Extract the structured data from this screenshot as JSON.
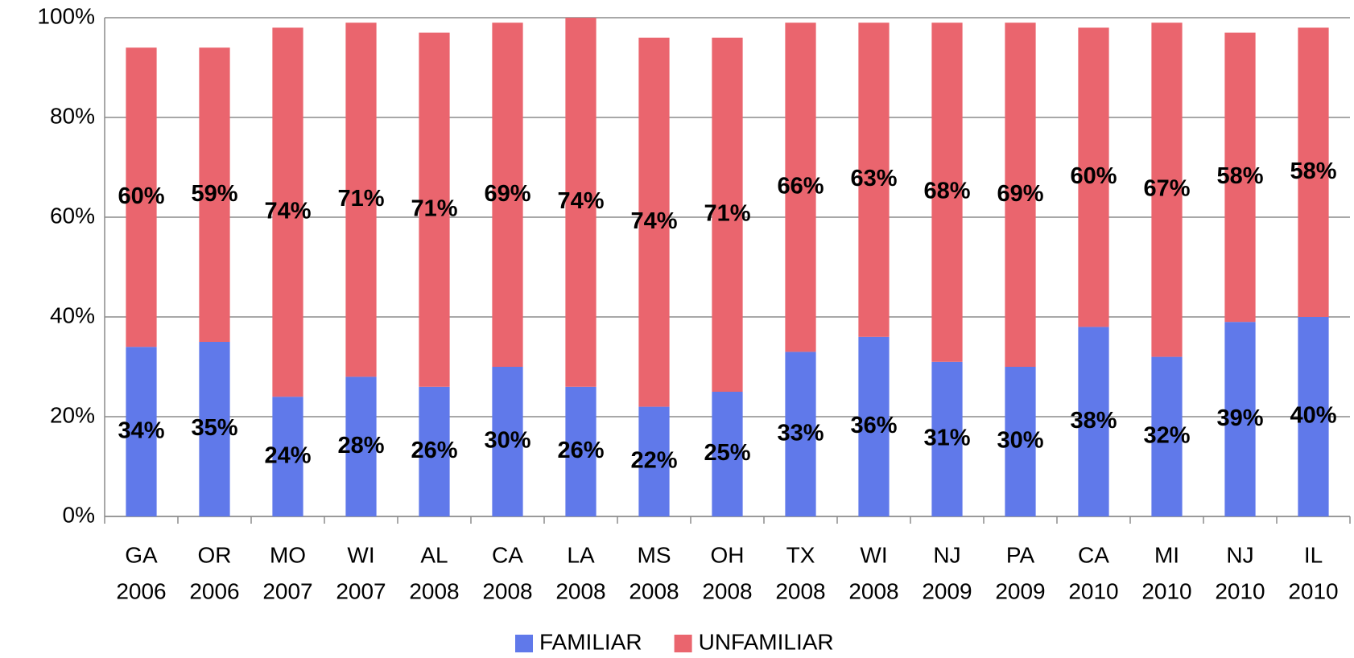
{
  "chart_data": {
    "type": "stacked_bar",
    "categories": [
      [
        "GA",
        "2006"
      ],
      [
        "OR",
        "2006"
      ],
      [
        "MO",
        "2007"
      ],
      [
        "WI",
        "2007"
      ],
      [
        "AL",
        "2008"
      ],
      [
        "CA",
        "2008"
      ],
      [
        "LA",
        "2008"
      ],
      [
        "MS",
        "2008"
      ],
      [
        "OH",
        "2008"
      ],
      [
        "TX",
        "2008"
      ],
      [
        "WI",
        "2008"
      ],
      [
        "NJ",
        "2009"
      ],
      [
        "PA",
        "2009"
      ],
      [
        "CA",
        "2010"
      ],
      [
        "MI",
        "2010"
      ],
      [
        "NJ",
        "2010"
      ],
      [
        "IL",
        "2010"
      ]
    ],
    "series": [
      {
        "name": "FAMILIAR",
        "color": "#6079ea",
        "values": [
          34,
          35,
          24,
          28,
          26,
          30,
          26,
          22,
          25,
          33,
          36,
          31,
          30,
          38,
          32,
          39,
          40
        ],
        "value_labels": [
          "34%",
          "35%",
          "24%",
          "28%",
          "26%",
          "30%",
          "26%",
          "22%",
          "25%",
          "33%",
          "36%",
          "31%",
          "30%",
          "38%",
          "32%",
          "39%",
          "40%"
        ]
      },
      {
        "name": "UNFAMILIAR",
        "color": "#ea656e",
        "values": [
          60,
          59,
          74,
          71,
          71,
          69,
          74,
          74,
          71,
          66,
          63,
          68,
          69,
          60,
          67,
          58,
          58
        ],
        "value_labels": [
          "60%",
          "59%",
          "74%",
          "71%",
          "71%",
          "69%",
          "74%",
          "74%",
          "71%",
          "66%",
          "63%",
          "68%",
          "69%",
          "60%",
          "67%",
          "58%",
          "58%"
        ]
      }
    ],
    "ylim": [
      0,
      100
    ],
    "yticks": [
      {
        "value": 0,
        "label": "0%"
      },
      {
        "value": 20,
        "label": "20%"
      },
      {
        "value": 40,
        "label": "40%"
      },
      {
        "value": 60,
        "label": "60%"
      },
      {
        "value": 80,
        "label": "80%"
      },
      {
        "value": 100,
        "label": "100%"
      }
    ],
    "grid": true,
    "legend": "bottom"
  }
}
